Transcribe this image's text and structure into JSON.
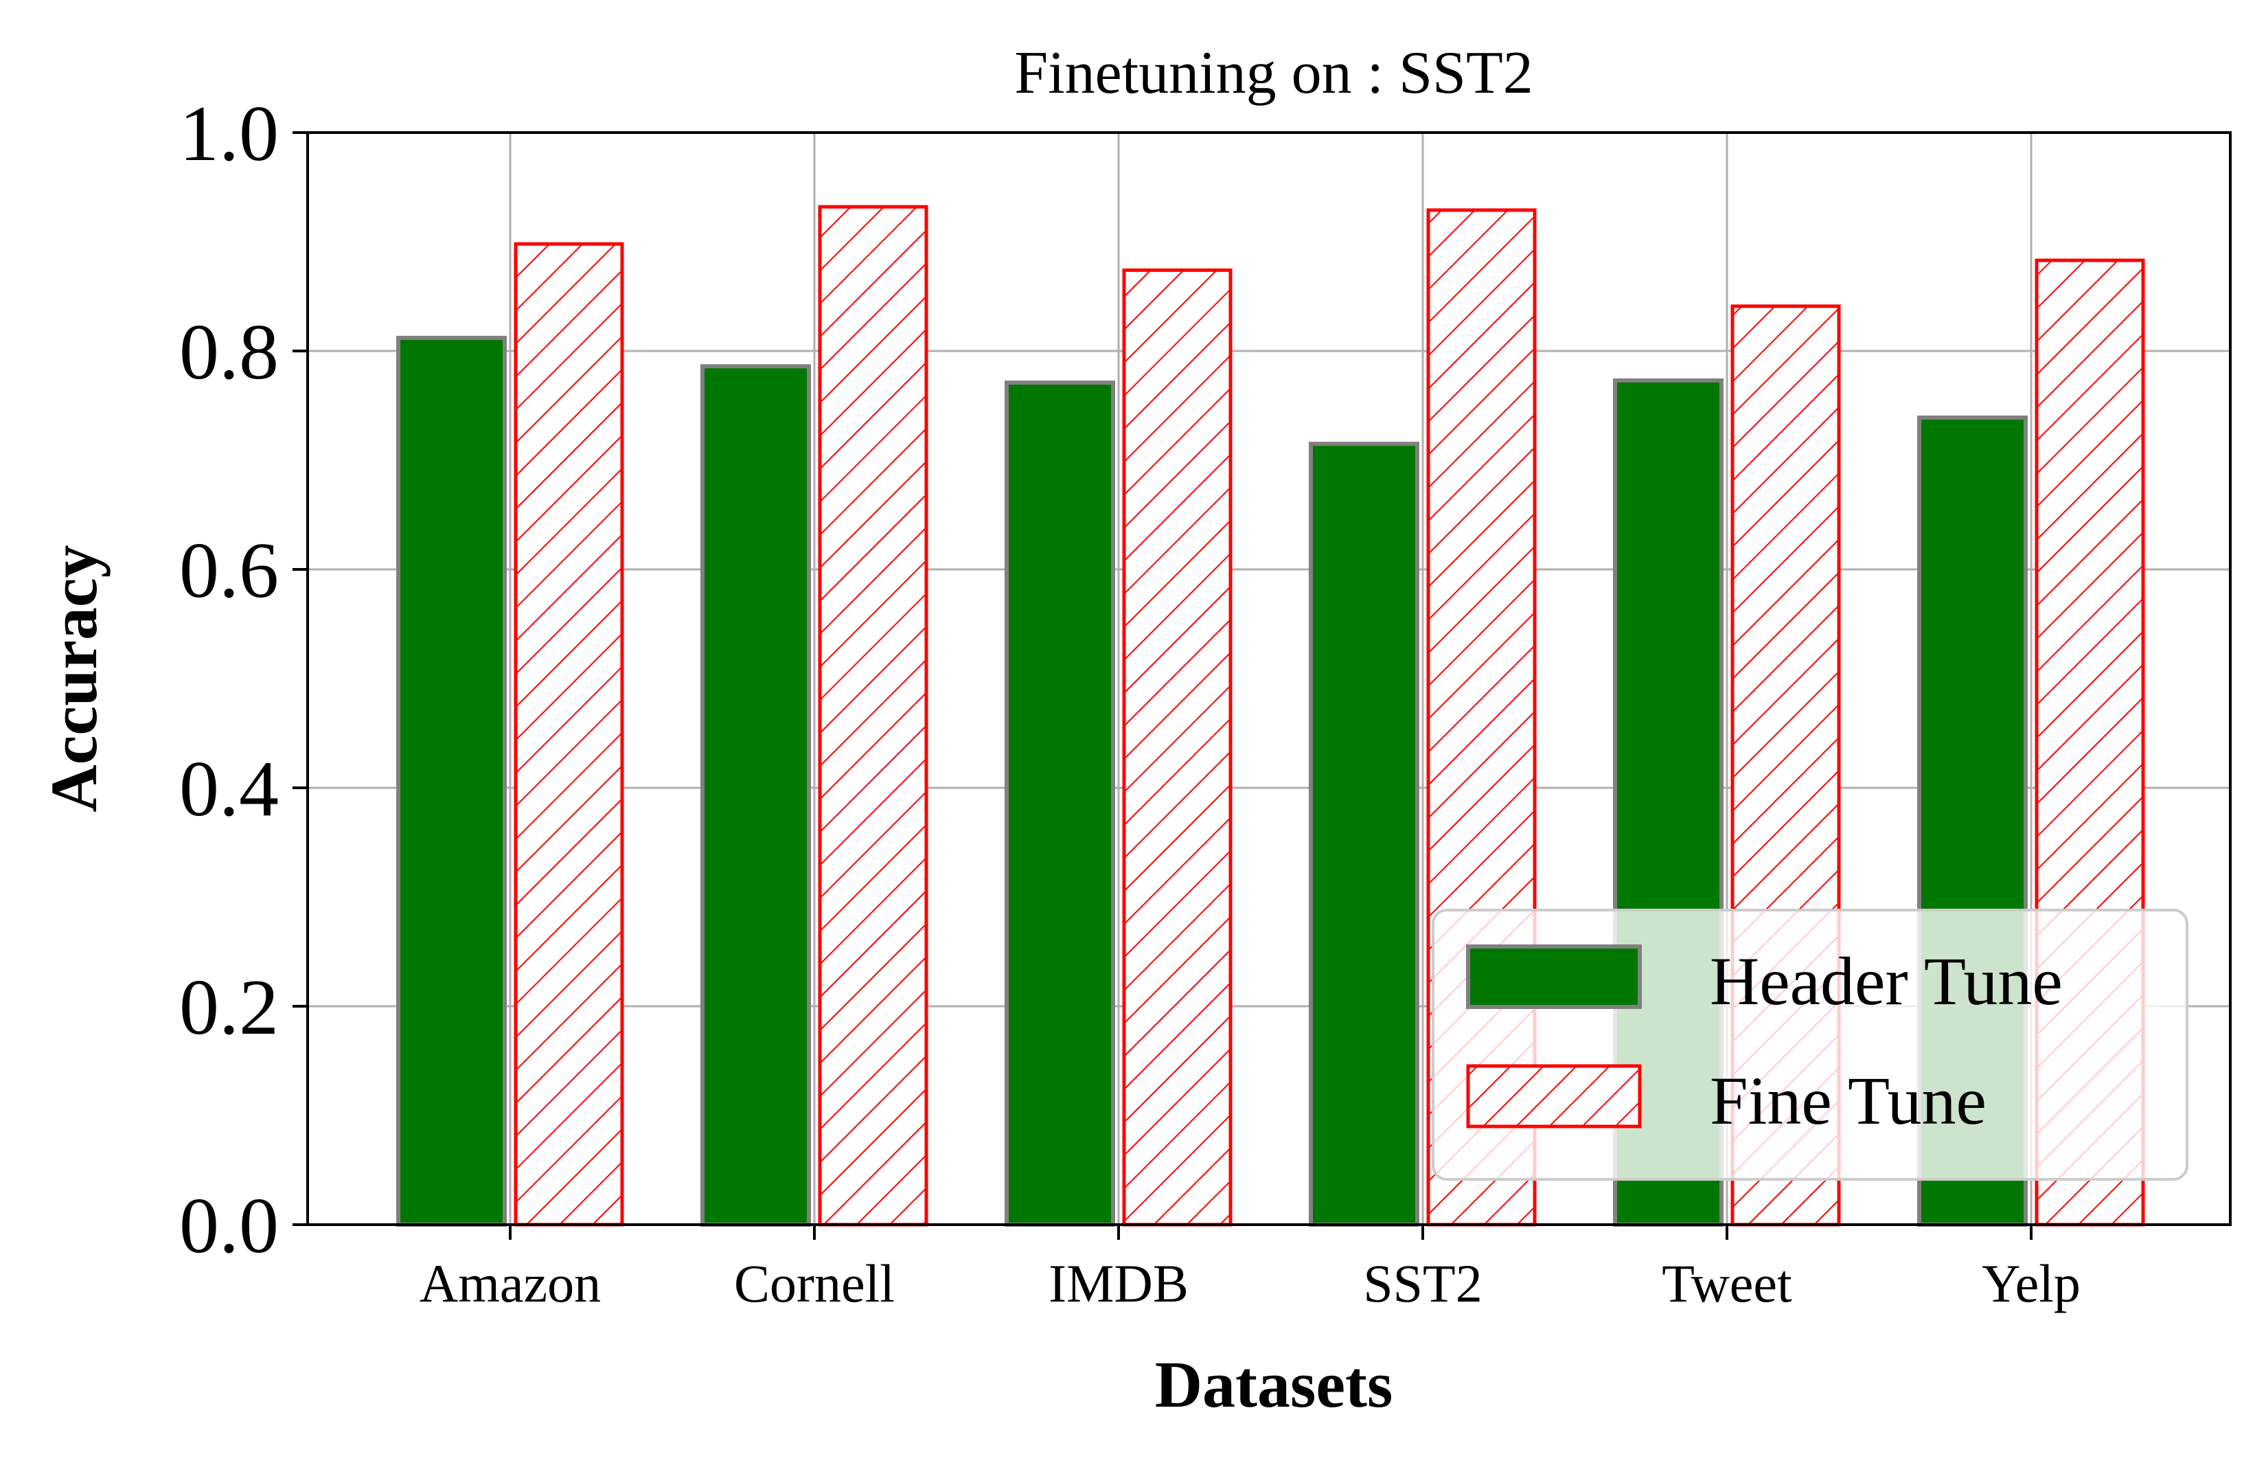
{
  "chart_data": {
    "type": "bar",
    "title": "Finetuning on : SST2",
    "xlabel": "Datasets",
    "ylabel": "Accuracy",
    "ylim": [
      0,
      1.0
    ],
    "yticks": [
      "0.0",
      "0.2",
      "0.4",
      "0.6",
      "0.8",
      "1.0"
    ],
    "grid": true,
    "legend_position": "bottom-right",
    "categories": [
      "Amazon",
      "Cornell",
      "IMDB",
      "SST2",
      "Tweet",
      "Yelp"
    ],
    "series": [
      {
        "name": "Header Tune",
        "values": [
          0.812,
          0.786,
          0.771,
          0.715,
          0.773,
          0.739
        ],
        "fill": "#007700",
        "edge": "#808080",
        "hatch": false
      },
      {
        "name": "Fine Tune",
        "values": [
          0.898,
          0.932,
          0.874,
          0.929,
          0.841,
          0.883
        ],
        "fill": "#ffffff",
        "edge": "#ff0000",
        "hatch": true
      }
    ]
  }
}
